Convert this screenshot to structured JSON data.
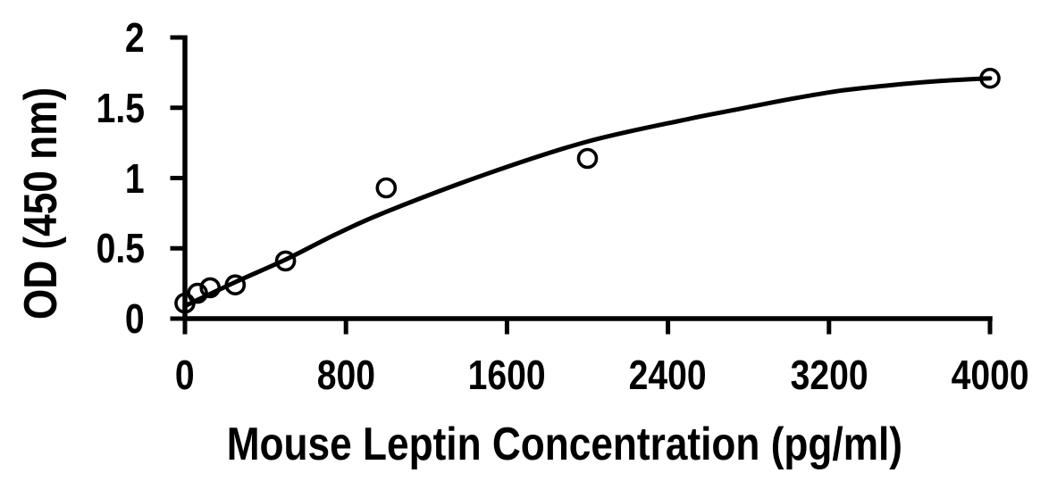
{
  "figure": {
    "background_color": "#ffffff",
    "ink_color": "#000000"
  },
  "chart_data": {
    "type": "scatter",
    "title": "",
    "xlabel": "Mouse Leptin Concentration (pg/ml)",
    "ylabel": "OD (450 nm)",
    "xlim": [
      0,
      4000
    ],
    "ylim": [
      0,
      2
    ],
    "x_ticks": [
      0,
      800,
      1600,
      2400,
      3200,
      4000
    ],
    "x_tick_labels": [
      "0",
      "800",
      "1600",
      "2400",
      "3200",
      "4000"
    ],
    "y_ticks": [
      0,
      0.5,
      1,
      1.5,
      2
    ],
    "y_tick_labels": [
      "0",
      "0.5",
      "1",
      "1.5",
      "2"
    ],
    "grid": false,
    "legend": false,
    "series": [
      {
        "name": "standard-curve-points",
        "marker": "open-circle",
        "x": [
          0,
          62.5,
          125,
          250,
          500,
          1000,
          2000,
          4000
        ],
        "y": [
          0.11,
          0.18,
          0.22,
          0.24,
          0.41,
          0.93,
          1.14,
          1.71
        ]
      }
    ],
    "trendline": {
      "type": "fitted-curve",
      "points": [
        [
          0,
          0.09
        ],
        [
          250,
          0.26
        ],
        [
          500,
          0.42
        ],
        [
          750,
          0.6
        ],
        [
          1000,
          0.76
        ],
        [
          1500,
          1.03
        ],
        [
          2000,
          1.26
        ],
        [
          2500,
          1.42
        ],
        [
          2750,
          1.49
        ],
        [
          3000,
          1.56
        ],
        [
          3250,
          1.62
        ],
        [
          3500,
          1.66
        ],
        [
          3750,
          1.69
        ],
        [
          4000,
          1.71
        ]
      ]
    }
  }
}
